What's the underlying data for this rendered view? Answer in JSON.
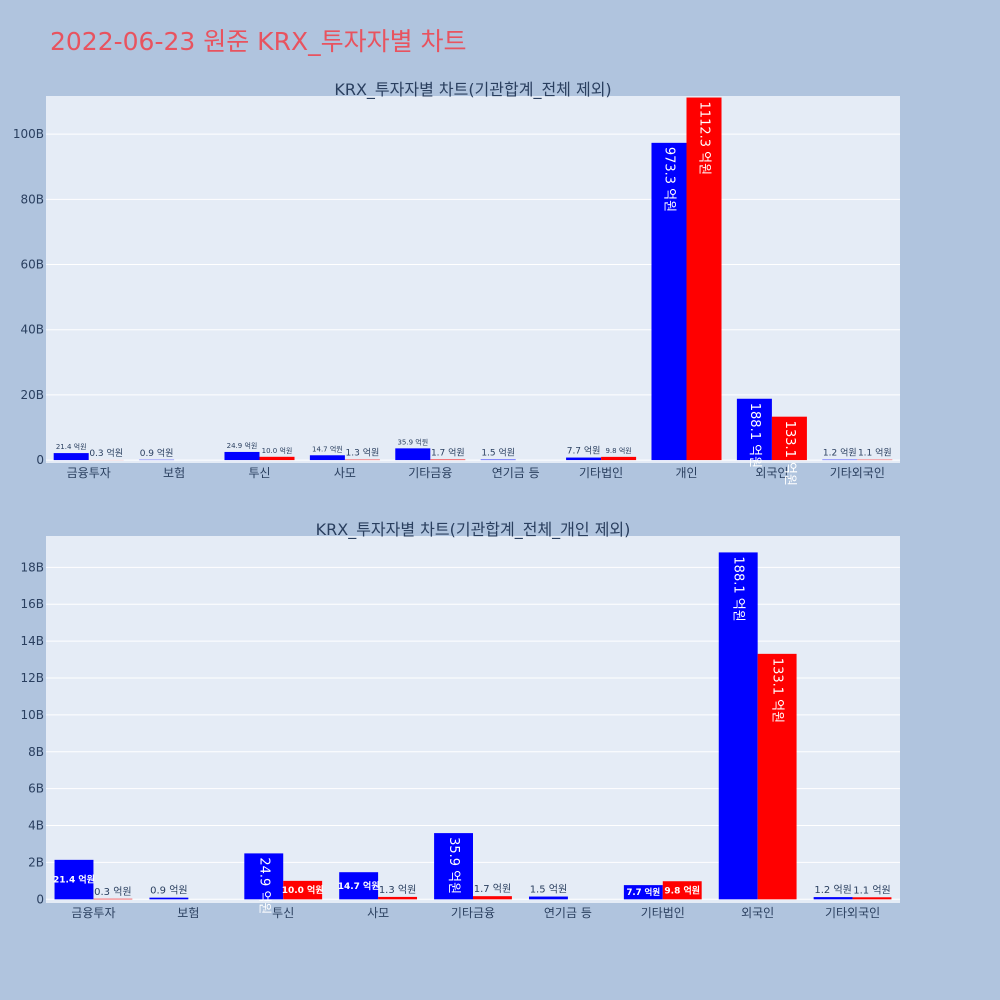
{
  "page": {
    "title": "2022-06-23 원준 KRX_투자자별 차트"
  },
  "colors": {
    "buy": "#0000ff",
    "sell": "#ff0000",
    "title": "#e8535f",
    "axis_text": "#2a3f5f",
    "plot_bg": "#e5ecf6",
    "paper_bg": "#b0c4de"
  },
  "chart_data": [
    {
      "type": "bar",
      "title": "KRX_투자자별 차트(기관합계_전체 제외)",
      "categories": [
        "금융투자",
        "보험",
        "투신",
        "사모",
        "기타금융",
        "연기금 등",
        "기타법인",
        "개인",
        "외국인",
        "기타외국인"
      ],
      "series": [
        {
          "color": "#0000ff",
          "values": [
            2.14,
            0.09,
            2.49,
            1.47,
            3.59,
            0.15,
            0.77,
            97.33,
            18.81,
            0.12
          ],
          "labels": [
            "21.4 억원",
            "0.9 억원",
            "24.9 억원",
            "14.7 억원",
            "35.9 억원",
            "1.5 억원",
            "7.7 억원",
            "973.3 억원",
            "188.1 억원",
            "1.2 억원"
          ]
        },
        {
          "color": "#ff0000",
          "values": [
            0.03,
            0,
            1.0,
            0.13,
            0.17,
            0,
            0.98,
            111.23,
            13.31,
            0.11
          ],
          "labels": [
            "0.3 억원",
            "",
            "10.0 억원",
            "1.3 억원",
            "1.7 억원",
            "",
            "9.8 억원",
            "1112.3 억원",
            "133.1 억원",
            "1.1 억원"
          ]
        }
      ],
      "yticks": [
        0,
        20,
        40,
        60,
        80,
        100
      ],
      "ytick_labels": [
        "0",
        "20B",
        "40B",
        "60B",
        "80B",
        "100B"
      ],
      "ylim": [
        -0.9,
        111.7
      ]
    },
    {
      "type": "bar",
      "title": "KRX_투자자별 차트(기관합계_전체_개인 제외)",
      "categories": [
        "금융투자",
        "보험",
        "투신",
        "사모",
        "기타금융",
        "연기금 등",
        "기타법인",
        "외국인",
        "기타외국인"
      ],
      "series": [
        {
          "color": "#0000ff",
          "values": [
            2.14,
            0.09,
            2.49,
            1.47,
            3.59,
            0.15,
            0.77,
            18.81,
            0.12
          ],
          "labels": [
            "21.4 억원",
            "0.9 억원",
            "24.9 억원",
            "14.7 억원",
            "35.9 억원",
            "1.5 억원",
            "7.7 억원",
            "188.1 억원",
            "1.2 억원"
          ]
        },
        {
          "color": "#ff0000",
          "values": [
            0.03,
            0,
            1.0,
            0.13,
            0.17,
            0,
            0.98,
            13.31,
            0.11
          ],
          "labels": [
            "0.3 억원",
            "",
            "10.0 억원",
            "1.3 억원",
            "1.7 억원",
            "",
            "9.8 억원",
            "133.1 억원",
            "1.1 억원"
          ]
        }
      ],
      "yticks": [
        0,
        2,
        4,
        6,
        8,
        10,
        12,
        14,
        16,
        18
      ],
      "ytick_labels": [
        "0",
        "2B",
        "4B",
        "6B",
        "8B",
        "10B",
        "12B",
        "14B",
        "16B",
        "18B"
      ],
      "ylim": [
        -0.2,
        19.7
      ]
    }
  ]
}
